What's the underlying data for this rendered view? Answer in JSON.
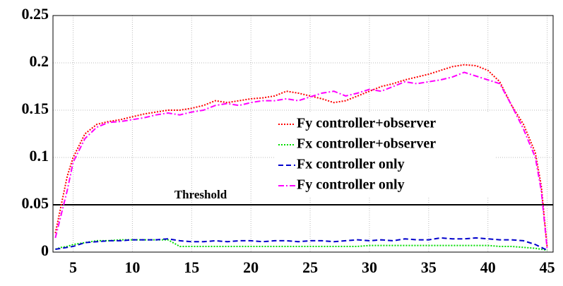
{
  "chart_data": {
    "type": "line",
    "x": [
      3.5,
      4,
      4.5,
      5,
      6,
      7,
      8,
      9,
      10,
      11,
      12,
      13,
      14,
      15,
      16,
      17,
      18,
      19,
      20,
      21,
      22,
      23,
      24,
      25,
      26,
      27,
      28,
      29,
      30,
      31,
      32,
      33,
      34,
      35,
      36,
      37,
      38,
      39,
      40,
      41,
      42,
      43,
      44,
      44.5,
      45
    ],
    "series": [
      {
        "name": "Fy controller+observer",
        "color": "#ff0000",
        "dash": "2,2",
        "values": [
          0.02,
          0.05,
          0.08,
          0.1,
          0.125,
          0.135,
          0.138,
          0.14,
          0.143,
          0.146,
          0.148,
          0.15,
          0.15,
          0.152,
          0.155,
          0.16,
          0.158,
          0.16,
          0.162,
          0.163,
          0.165,
          0.17,
          0.168,
          0.165,
          0.162,
          0.158,
          0.16,
          0.165,
          0.17,
          0.175,
          0.178,
          0.182,
          0.185,
          0.188,
          0.192,
          0.196,
          0.198,
          0.197,
          0.192,
          0.18,
          0.155,
          0.135,
          0.105,
          0.07,
          0.005
        ]
      },
      {
        "name": "Fx controller+observer",
        "color": "#00dd00",
        "dash": "2,2",
        "values": [
          0.003,
          0.005,
          0.006,
          0.008,
          0.01,
          0.012,
          0.012,
          0.013,
          0.013,
          0.013,
          0.013,
          0.013,
          0.006,
          0.006,
          0.006,
          0.006,
          0.006,
          0.006,
          0.006,
          0.006,
          0.006,
          0.006,
          0.006,
          0.006,
          0.006,
          0.006,
          0.006,
          0.006,
          0.007,
          0.007,
          0.007,
          0.007,
          0.007,
          0.007,
          0.007,
          0.007,
          0.007,
          0.007,
          0.007,
          0.006,
          0.006,
          0.005,
          0.004,
          0.003,
          0.002
        ]
      },
      {
        "name": "Fx controller only",
        "color": "#0000cc",
        "dash": "7,4",
        "values": [
          0.003,
          0.004,
          0.005,
          0.006,
          0.01,
          0.011,
          0.012,
          0.012,
          0.013,
          0.013,
          0.013,
          0.014,
          0.012,
          0.011,
          0.011,
          0.012,
          0.011,
          0.012,
          0.012,
          0.011,
          0.012,
          0.012,
          0.011,
          0.012,
          0.012,
          0.011,
          0.012,
          0.013,
          0.012,
          0.013,
          0.012,
          0.014,
          0.013,
          0.013,
          0.015,
          0.014,
          0.014,
          0.015,
          0.014,
          0.013,
          0.013,
          0.012,
          0.008,
          0.005,
          0.002
        ]
      },
      {
        "name": "Fy controller only",
        "color": "#ff00ff",
        "dash": "8,3,2,3",
        "values": [
          0.015,
          0.04,
          0.065,
          0.095,
          0.12,
          0.132,
          0.137,
          0.138,
          0.14,
          0.142,
          0.145,
          0.147,
          0.145,
          0.148,
          0.15,
          0.155,
          0.157,
          0.155,
          0.158,
          0.16,
          0.16,
          0.162,
          0.16,
          0.164,
          0.168,
          0.17,
          0.165,
          0.168,
          0.172,
          0.17,
          0.175,
          0.18,
          0.178,
          0.18,
          0.182,
          0.185,
          0.19,
          0.186,
          0.182,
          0.178,
          0.155,
          0.13,
          0.1,
          0.065,
          0.003
        ]
      }
    ],
    "threshold": {
      "value": 0.05,
      "label": "Threshold"
    },
    "xlim": [
      3.3,
      45.5
    ],
    "ylim": [
      0,
      0.25
    ],
    "xticks": [
      5,
      10,
      15,
      20,
      25,
      30,
      35,
      40,
      45
    ],
    "yticks": [
      0,
      0.05,
      0.1,
      0.15,
      0.2,
      0.25
    ],
    "grid": true,
    "legend": "center right"
  }
}
